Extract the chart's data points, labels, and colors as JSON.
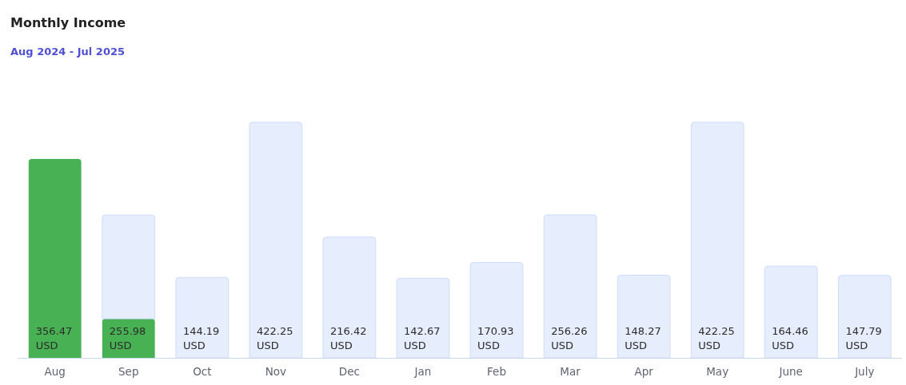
{
  "chart_data": {
    "type": "bar",
    "title": "Monthly Income",
    "subtitle": "Aug 2024 - Jul 2025",
    "categories": [
      "Aug",
      "Sep",
      "Oct",
      "Nov",
      "Dec",
      "Jan",
      "Feb",
      "Mar",
      "Apr",
      "May",
      "June",
      "July"
    ],
    "stacked": true,
    "series": [
      {
        "color": "#48b153",
        "values": [
          356.47,
          70,
          null,
          null,
          null,
          null,
          null,
          null,
          null,
          null,
          null,
          null
        ],
        "value_labels": [
          "356.47 USD",
          null,
          null,
          null,
          null,
          null,
          null,
          null,
          null,
          null,
          null,
          null
        ]
      },
      {
        "color": "#e6edfd",
        "values": [
          null,
          185.98,
          144.19,
          422.25,
          216.42,
          142.67,
          170.93,
          256.26,
          148.27,
          422.25,
          164.46,
          147.79
        ],
        "value_labels": [
          null,
          null,
          "144.19 USD",
          "422.25 USD",
          "216.42 USD",
          "142.67 USD",
          "170.93 USD",
          "256.26 USD",
          "148.27 USD",
          "422.25 USD",
          "164.46 USD",
          "147.79 USD"
        ]
      }
    ],
    "totals": [
      null,
      "255.98 USD",
      null,
      null,
      null,
      null,
      null,
      null,
      null,
      null,
      null,
      null
    ]
  }
}
